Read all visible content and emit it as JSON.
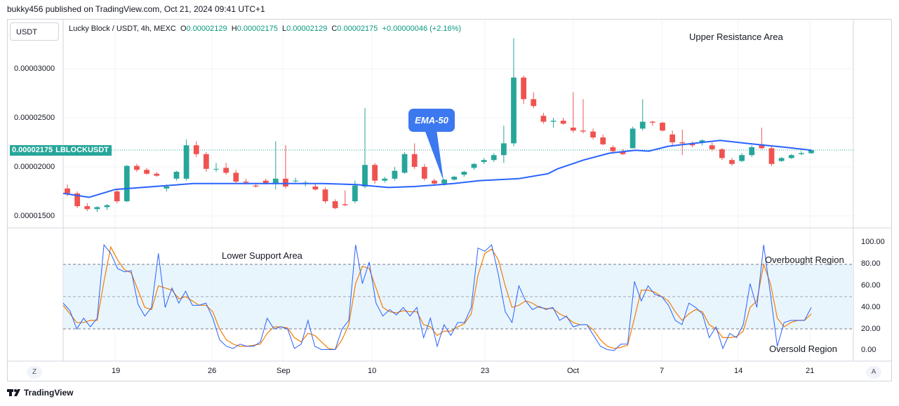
{
  "header": {
    "publisher": "bukky456 published on TradingView.com, Oct 21, 2024 09:41 UTC+1"
  },
  "toolbar": {
    "currency_label": "USDT"
  },
  "legend": {
    "symbol": "Lucky Block / USDT, 4h, MEXC",
    "o_label": "O",
    "o_value": "0.00002129",
    "h_label": "H",
    "h_value": "0.00002175",
    "l_label": "L",
    "l_value": "0.00002129",
    "c_label": "C",
    "c_value": "0.00002175",
    "change": "+0.00000046 (+2.16%)"
  },
  "price_axis": {
    "labels": [
      "0.00003000",
      "0.00002500",
      "0.00002000",
      "0.00001500"
    ],
    "current_price": "0.00002175",
    "current_symbol": "LBLOCKUSDT"
  },
  "annotations": {
    "upper_resistance": "Upper Resistance Area",
    "lower_support": "Lower Support Area",
    "ema_label": "EMA-50",
    "overbought": "Overbought Region",
    "oversold": "Oversold Region"
  },
  "oscillator_axis": {
    "labels": [
      "100.00",
      "80.00",
      "60.00",
      "40.00",
      "20.00",
      "0.00"
    ]
  },
  "time_axis": {
    "labels": [
      "19",
      "26",
      "Sep",
      "10",
      "23",
      "Oct",
      "7",
      "14",
      "21"
    ]
  },
  "controls": {
    "z_label": "Z",
    "a_label": "A"
  },
  "footer": {
    "brand": "TradingView"
  },
  "colors": {
    "bull": "#26a69a",
    "bear": "#ef5350",
    "ema": "#2962ff",
    "k_line": "#2962ff",
    "d_line": "#f57c00",
    "band": "#e3f2fd"
  },
  "chart_data": {
    "type": "candlestick",
    "timeframe": "4h",
    "ylim": [
      1.4e-05,
      3.4e-05
    ],
    "ema_period": 50,
    "ema": [
      [
        0,
        1.73e-05
      ],
      [
        40,
        1.69e-05
      ],
      [
        80,
        1.77e-05
      ],
      [
        140,
        1.8e-05
      ],
      [
        200,
        1.83e-05
      ],
      [
        250,
        1.83e-05
      ],
      [
        320,
        1.83e-05
      ],
      [
        400,
        1.83e-05
      ],
      [
        450,
        1.82e-05
      ],
      [
        500,
        1.79e-05
      ],
      [
        540,
        1.8e-05
      ],
      [
        600,
        1.83e-05
      ],
      [
        640,
        1.86e-05
      ],
      [
        700,
        1.88e-05
      ],
      [
        745,
        1.93e-05
      ],
      [
        760,
        1.98e-05
      ],
      [
        800,
        2.07e-05
      ],
      [
        840,
        2.14e-05
      ],
      [
        880,
        2.17e-05
      ],
      [
        900,
        2.16e-05
      ],
      [
        930,
        2.21e-05
      ],
      [
        970,
        2.24e-05
      ],
      [
        1010,
        2.27e-05
      ],
      [
        1050,
        2.24e-05
      ],
      [
        1080,
        2.22e-05
      ],
      [
        1110,
        2.2e-05
      ],
      [
        1150,
        2.17e-05
      ]
    ],
    "candles": [
      [
        1.78e-05,
        1.82e-05,
        1.7e-05,
        1.73e-05
      ],
      [
        1.73e-05,
        1.75e-05,
        1.58e-05,
        1.6e-05
      ],
      [
        1.6e-05,
        1.63e-05,
        1.55e-05,
        1.57e-05
      ],
      [
        1.57e-05,
        1.6e-05,
        1.54e-05,
        1.59e-05
      ],
      [
        1.59e-05,
        1.62e-05,
        1.56e-05,
        1.61e-05
      ],
      [
        1.75e-05,
        1.78e-05,
        1.63e-05,
        1.65e-05
      ],
      [
        1.65e-05,
        2.02e-05,
        1.64e-05,
        2.01e-05
      ],
      [
        2.01e-05,
        2.03e-05,
        1.95e-05,
        1.97e-05
      ],
      [
        1.97e-05,
        1.99e-05,
        1.92e-05,
        1.93e-05
      ],
      [
        1.93e-05,
        1.95e-05,
        1.9e-05,
        1.91e-05
      ],
      [
        1.78e-05,
        1.82e-05,
        1.75e-05,
        1.8e-05
      ],
      [
        1.88e-05,
        1.96e-05,
        1.86e-05,
        1.95e-05
      ],
      [
        1.88e-05,
        2.28e-05,
        1.86e-05,
        2.22e-05
      ],
      [
        2.22e-05,
        2.26e-05,
        2.1e-05,
        2.13e-05
      ],
      [
        2.13e-05,
        2.15e-05,
        1.95e-05,
        1.98e-05
      ],
      [
        1.98e-05,
        2.04e-05,
        1.95e-05,
        1.98e-05
      ],
      [
        1.99e-05,
        2.04e-05,
        1.92e-05,
        1.94e-05
      ],
      [
        1.94e-05,
        1.97e-05,
        1.83e-05,
        1.85e-05
      ],
      [
        1.85e-05,
        1.88e-05,
        1.82e-05,
        1.84e-05
      ],
      [
        1.81e-05,
        1.84e-05,
        1.79e-05,
        1.8e-05
      ],
      [
        1.86e-05,
        1.88e-05,
        1.82e-05,
        1.83e-05
      ],
      [
        1.83e-05,
        2.26e-05,
        1.77e-05,
        1.88e-05
      ],
      [
        1.88e-05,
        2.22e-05,
        1.78e-05,
        1.8e-05
      ],
      [
        1.86e-05,
        1.89e-05,
        1.84e-05,
        1.86e-05
      ],
      [
        1.83e-05,
        1.86e-05,
        1.8e-05,
        1.84e-05
      ],
      [
        1.8e-05,
        1.83e-05,
        1.76e-05,
        1.77e-05
      ],
      [
        1.77e-05,
        1.79e-05,
        1.63e-05,
        1.65e-05
      ],
      [
        1.65e-05,
        1.67e-05,
        1.57e-05,
        1.58e-05
      ],
      [
        1.62e-05,
        1.76e-05,
        1.6e-05,
        1.61e-05
      ],
      [
        1.65e-05,
        1.86e-05,
        1.63e-05,
        1.81e-05
      ],
      [
        1.8e-05,
        2.6e-05,
        1.78e-05,
        2.02e-05
      ],
      [
        2.02e-05,
        2.04e-05,
        1.83e-05,
        1.86e-05
      ],
      [
        1.86e-05,
        1.9e-05,
        1.84e-05,
        1.88e-05
      ],
      [
        1.88e-05,
        2e-05,
        1.86e-05,
        1.96e-05
      ],
      [
        1.94e-05,
        2.15e-05,
        1.93e-05,
        2.13e-05
      ],
      [
        2.13e-05,
        2.24e-05,
        1.98e-05,
        2e-05
      ],
      [
        2e-05,
        2.03e-05,
        1.86e-05,
        1.88e-05
      ],
      [
        1.86e-05,
        1.88e-05,
        1.81e-05,
        1.83e-05
      ],
      [
        1.83e-05,
        1.88e-05,
        1.81e-05,
        1.87e-05
      ],
      [
        1.87e-05,
        1.91e-05,
        1.86e-05,
        1.9e-05
      ],
      [
        1.92e-05,
        1.96e-05,
        1.9e-05,
        1.95e-05
      ],
      [
        1.99e-05,
        2.04e-05,
        1.97e-05,
        2.03e-05
      ],
      [
        2.05e-05,
        2.09e-05,
        2.03e-05,
        2.07e-05
      ],
      [
        2.07e-05,
        2.14e-05,
        2.05e-05,
        2.12e-05
      ],
      [
        2.12e-05,
        2.42e-05,
        2.04e-05,
        2.24e-05
      ],
      [
        2.24e-05,
        3.31e-05,
        2.21e-05,
        2.91e-05
      ],
      [
        2.91e-05,
        2.93e-05,
        2.64e-05,
        2.69e-05
      ],
      [
        2.69e-05,
        2.76e-05,
        2.6e-05,
        2.62e-05
      ],
      [
        2.52e-05,
        2.55e-05,
        2.44e-05,
        2.46e-05
      ],
      [
        2.46e-05,
        2.5e-05,
        2.4e-05,
        2.47e-05
      ],
      [
        2.47e-05,
        2.5e-05,
        2.43e-05,
        2.44e-05
      ],
      [
        2.4e-05,
        2.76e-05,
        2.35e-05,
        2.37e-05
      ],
      [
        2.37e-05,
        2.69e-05,
        2.34e-05,
        2.36e-05
      ],
      [
        2.36e-05,
        2.39e-05,
        2.28e-05,
        2.3e-05
      ],
      [
        2.3e-05,
        2.33e-05,
        2.22e-05,
        2.23e-05
      ],
      [
        2.2e-05,
        2.22e-05,
        2.14e-05,
        2.16e-05
      ],
      [
        2.16e-05,
        2.18e-05,
        2.12e-05,
        2.13e-05
      ],
      [
        2.19e-05,
        2.41e-05,
        2.19e-05,
        2.39e-05
      ],
      [
        2.39e-05,
        2.69e-05,
        2.37e-05,
        2.46e-05
      ],
      [
        2.46e-05,
        2.47e-05,
        2.42e-05,
        2.45e-05
      ],
      [
        2.45e-05,
        2.46e-05,
        2.36e-05,
        2.37e-05
      ],
      [
        2.33e-05,
        2.37e-05,
        2.21e-05,
        2.25e-05
      ],
      [
        2.25e-05,
        2.38e-05,
        2.12e-05,
        2.24e-05
      ],
      [
        2.24e-05,
        2.26e-05,
        2.2e-05,
        2.22e-05
      ],
      [
        2.25e-05,
        2.28e-05,
        2.22e-05,
        2.27e-05
      ],
      [
        2.22e-05,
        2.25e-05,
        2.16e-05,
        2.18e-05
      ],
      [
        2.18e-05,
        2.19e-05,
        2.07e-05,
        2.09e-05
      ],
      [
        2.07e-05,
        2.09e-05,
        2.01e-05,
        2.03e-05
      ],
      [
        2.06e-05,
        2.14e-05,
        2.05e-05,
        2.12e-05
      ],
      [
        2.12e-05,
        2.22e-05,
        2.1e-05,
        2.2e-05
      ],
      [
        2.23e-05,
        2.4e-05,
        2.18e-05,
        2.19e-05
      ],
      [
        2.19e-05,
        2.22e-05,
        2.01e-05,
        2.03e-05
      ],
      [
        2.06e-05,
        2.1e-05,
        2.05e-05,
        2.09e-05
      ],
      [
        2.09e-05,
        2.13e-05,
        2.08e-05,
        2.12e-05
      ],
      [
        2.13e-05,
        2.16e-05,
        2.12e-05,
        2.14e-05
      ],
      [
        2.14e-05,
        2.18e-05,
        2.13e-05,
        2.17e-05
      ]
    ],
    "stoch_k": [
      [
        0,
        44
      ],
      [
        10,
        37
      ],
      [
        20,
        20
      ],
      [
        30,
        30
      ],
      [
        40,
        22
      ],
      [
        50,
        30
      ],
      [
        60,
        98
      ],
      [
        70,
        90
      ],
      [
        80,
        76
      ],
      [
        90,
        73
      ],
      [
        100,
        74
      ],
      [
        110,
        43
      ],
      [
        120,
        32
      ],
      [
        130,
        40
      ],
      [
        140,
        90
      ],
      [
        150,
        40
      ],
      [
        160,
        58
      ],
      [
        170,
        44
      ],
      [
        180,
        55
      ],
      [
        190,
        42
      ],
      [
        200,
        42
      ],
      [
        210,
        44
      ],
      [
        220,
        30
      ],
      [
        230,
        10
      ],
      [
        240,
        4
      ],
      [
        250,
        2
      ],
      [
        260,
        6
      ],
      [
        270,
        4
      ],
      [
        280,
        4
      ],
      [
        290,
        8
      ],
      [
        300,
        30
      ],
      [
        310,
        20
      ],
      [
        320,
        22
      ],
      [
        330,
        20
      ],
      [
        340,
        2
      ],
      [
        350,
        6
      ],
      [
        360,
        28
      ],
      [
        370,
        4
      ],
      [
        380,
        1
      ],
      [
        390,
        1
      ],
      [
        400,
        1
      ],
      [
        410,
        20
      ],
      [
        420,
        28
      ],
      [
        430,
        98
      ],
      [
        440,
        62
      ],
      [
        450,
        82
      ],
      [
        460,
        44
      ],
      [
        470,
        32
      ],
      [
        480,
        38
      ],
      [
        490,
        33
      ],
      [
        500,
        40
      ],
      [
        510,
        32
      ],
      [
        520,
        40
      ],
      [
        530,
        12
      ],
      [
        540,
        30
      ],
      [
        550,
        4
      ],
      [
        560,
        24
      ],
      [
        570,
        14
      ],
      [
        580,
        26
      ],
      [
        590,
        26
      ],
      [
        600,
        40
      ],
      [
        610,
        95
      ],
      [
        620,
        92
      ],
      [
        630,
        98
      ],
      [
        640,
        70
      ],
      [
        650,
        36
      ],
      [
        660,
        26
      ],
      [
        670,
        60
      ],
      [
        680,
        46
      ],
      [
        690,
        38
      ],
      [
        700,
        41
      ],
      [
        710,
        38
      ],
      [
        720,
        40
      ],
      [
        730,
        28
      ],
      [
        740,
        32
      ],
      [
        750,
        22
      ],
      [
        760,
        24
      ],
      [
        770,
        24
      ],
      [
        780,
        14
      ],
      [
        790,
        4
      ],
      [
        800,
        1
      ],
      [
        810,
        0
      ],
      [
        820,
        6
      ],
      [
        830,
        6
      ],
      [
        840,
        64
      ],
      [
        850,
        46
      ],
      [
        860,
        60
      ],
      [
        870,
        52
      ],
      [
        880,
        50
      ],
      [
        890,
        42
      ],
      [
        900,
        28
      ],
      [
        910,
        24
      ],
      [
        920,
        44
      ],
      [
        930,
        40
      ],
      [
        940,
        34
      ],
      [
        950,
        12
      ],
      [
        960,
        22
      ],
      [
        970,
        2
      ],
      [
        980,
        16
      ],
      [
        990,
        12
      ],
      [
        1000,
        24
      ],
      [
        1010,
        62
      ],
      [
        1020,
        40
      ],
      [
        1030,
        98
      ],
      [
        1040,
        52
      ],
      [
        1050,
        4
      ],
      [
        1060,
        26
      ],
      [
        1070,
        28
      ],
      [
        1080,
        28
      ],
      [
        1090,
        28
      ],
      [
        1100,
        40
      ]
    ],
    "stoch_d": [
      [
        0,
        42
      ],
      [
        10,
        34
      ],
      [
        20,
        26
      ],
      [
        30,
        26
      ],
      [
        40,
        28
      ],
      [
        50,
        28
      ],
      [
        60,
        64
      ],
      [
        70,
        96
      ],
      [
        80,
        84
      ],
      [
        90,
        75
      ],
      [
        100,
        72
      ],
      [
        110,
        56
      ],
      [
        120,
        40
      ],
      [
        130,
        38
      ],
      [
        140,
        60
      ],
      [
        150,
        58
      ],
      [
        160,
        56
      ],
      [
        170,
        48
      ],
      [
        180,
        50
      ],
      [
        190,
        46
      ],
      [
        200,
        42
      ],
      [
        210,
        42
      ],
      [
        220,
        36
      ],
      [
        230,
        20
      ],
      [
        240,
        10
      ],
      [
        250,
        6
      ],
      [
        260,
        4
      ],
      [
        270,
        4
      ],
      [
        280,
        5
      ],
      [
        290,
        6
      ],
      [
        300,
        16
      ],
      [
        310,
        22
      ],
      [
        320,
        22
      ],
      [
        330,
        21
      ],
      [
        340,
        12
      ],
      [
        350,
        8
      ],
      [
        360,
        16
      ],
      [
        370,
        14
      ],
      [
        380,
        8
      ],
      [
        390,
        2
      ],
      [
        400,
        1
      ],
      [
        410,
        10
      ],
      [
        420,
        24
      ],
      [
        430,
        62
      ],
      [
        440,
        78
      ],
      [
        450,
        76
      ],
      [
        460,
        58
      ],
      [
        470,
        40
      ],
      [
        480,
        36
      ],
      [
        490,
        35
      ],
      [
        500,
        37
      ],
      [
        510,
        36
      ],
      [
        520,
        36
      ],
      [
        530,
        24
      ],
      [
        540,
        22
      ],
      [
        550,
        14
      ],
      [
        560,
        18
      ],
      [
        570,
        18
      ],
      [
        580,
        22
      ],
      [
        590,
        25
      ],
      [
        600,
        34
      ],
      [
        610,
        70
      ],
      [
        620,
        90
      ],
      [
        630,
        94
      ],
      [
        640,
        84
      ],
      [
        650,
        60
      ],
      [
        660,
        40
      ],
      [
        670,
        42
      ],
      [
        680,
        46
      ],
      [
        690,
        44
      ],
      [
        700,
        40
      ],
      [
        710,
        39
      ],
      [
        720,
        39
      ],
      [
        730,
        34
      ],
      [
        740,
        31
      ],
      [
        750,
        26
      ],
      [
        760,
        24
      ],
      [
        770,
        24
      ],
      [
        780,
        19
      ],
      [
        790,
        10
      ],
      [
        800,
        4
      ],
      [
        810,
        2
      ],
      [
        820,
        3
      ],
      [
        830,
        5
      ],
      [
        840,
        30
      ],
      [
        850,
        56
      ],
      [
        860,
        56
      ],
      [
        870,
        54
      ],
      [
        880,
        50
      ],
      [
        890,
        46
      ],
      [
        900,
        36
      ],
      [
        910,
        28
      ],
      [
        920,
        34
      ],
      [
        930,
        38
      ],
      [
        940,
        36
      ],
      [
        950,
        24
      ],
      [
        960,
        20
      ],
      [
        970,
        12
      ],
      [
        980,
        12
      ],
      [
        990,
        13
      ],
      [
        1000,
        18
      ],
      [
        1010,
        40
      ],
      [
        1020,
        46
      ],
      [
        1030,
        80
      ],
      [
        1040,
        62
      ],
      [
        1050,
        30
      ],
      [
        1060,
        22
      ],
      [
        1070,
        26
      ],
      [
        1080,
        28
      ],
      [
        1090,
        28
      ],
      [
        1100,
        34
      ]
    ],
    "oscillator_levels": [
      80,
      50,
      20
    ],
    "oscillator_ylim": [
      -10,
      110
    ]
  }
}
